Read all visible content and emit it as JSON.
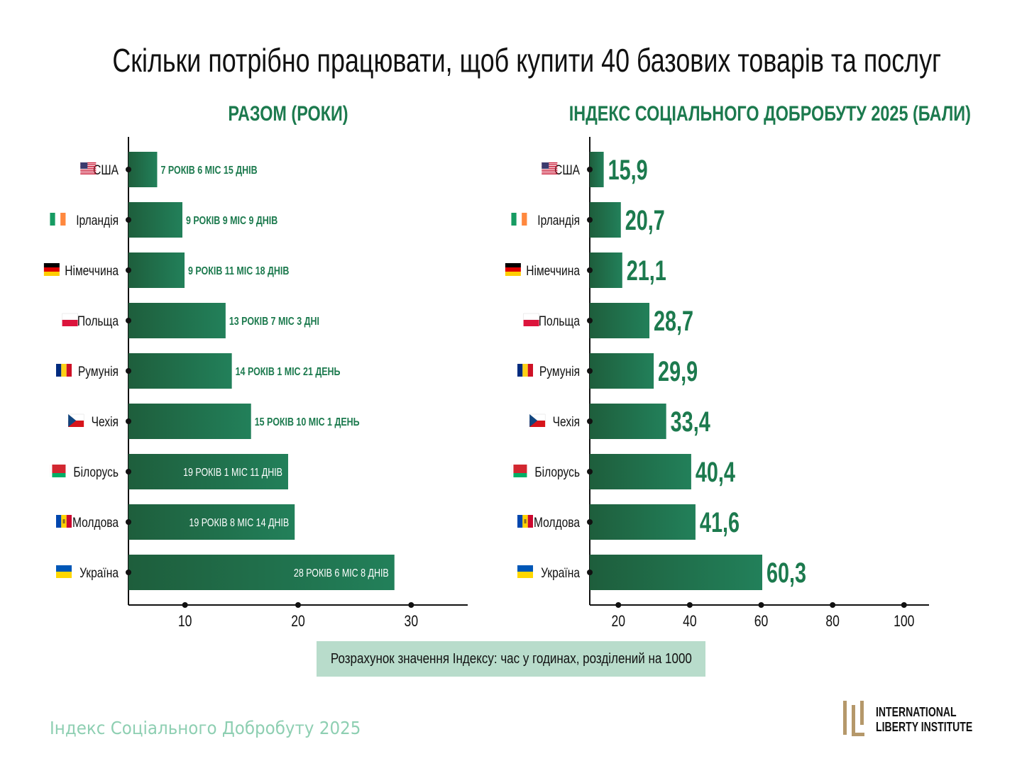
{
  "title": "Скільки потрібно працювати, щоб купити 40 базових товарів та послуг",
  "colors": {
    "accent": "#1c7a4e",
    "bar_dark": "#1e5e3c",
    "bar_light": "#22805a",
    "footnote_bg": "#b8dccb",
    "logo_gold": "#b5986a",
    "footer": "#8ecfb2"
  },
  "chart_data": [
    {
      "type": "bar",
      "orientation": "horizontal",
      "title": "РАЗОМ (РОКИ)",
      "xlabel": "",
      "ylabel": "",
      "xlim": [
        5,
        35
      ],
      "xticks": [
        10,
        20,
        30
      ],
      "categories": [
        "США",
        "Ірландія",
        "Німеччина",
        "Польща",
        "Румунія",
        "Чехія",
        "Білорусь",
        "Молдова",
        "Україна"
      ],
      "flags": [
        "us-flag-icon",
        "ireland-flag-icon",
        "germany-flag-icon",
        "poland-flag-icon",
        "romania-flag-icon",
        "czechia-flag-icon",
        "belarus-flag-icon",
        "moldova-flag-icon",
        "ukraine-flag-icon"
      ],
      "values": [
        7.54,
        9.77,
        9.96,
        13.59,
        14.14,
        15.84,
        19.12,
        19.7,
        28.52
      ],
      "labels": [
        "7 РОКІВ 6 МІС 15 ДНІВ",
        "9 РОКІВ 9 МІС 9 ДНІВ",
        "9 РОКІВ 11 МІС 18 ДНІВ",
        "13 РОКІВ 7 МІС 3 ДНІ",
        "14 РОКІВ 1 МІС 21 ДЕНЬ",
        "15 РОКІВ 10 МІС 1 ДЕНЬ",
        "19 РОКІВ 1 МІС 11 ДНІВ",
        "19 РОКІВ 8 МІС 14 ДНІВ",
        "28 РОКІВ 6 МІС 8 ДНІВ"
      ]
    },
    {
      "type": "bar",
      "orientation": "horizontal",
      "title": "ІНДЕКС СОЦІАЛЬНОГО ДОБРОБУТУ 2025 (БАЛИ)",
      "xlabel": "",
      "ylabel": "",
      "xlim": [
        12,
        107
      ],
      "xticks": [
        20,
        40,
        60,
        80,
        100
      ],
      "categories": [
        "США",
        "Ірландія",
        "Німеччина",
        "Польща",
        "Румунія",
        "Чехія",
        "Білорусь",
        "Молдова",
        "Україна"
      ],
      "flags": [
        "us-flag-icon",
        "ireland-flag-icon",
        "germany-flag-icon",
        "poland-flag-icon",
        "romania-flag-icon",
        "czechia-flag-icon",
        "belarus-flag-icon",
        "moldova-flag-icon",
        "ukraine-flag-icon"
      ],
      "values": [
        15.9,
        20.7,
        21.1,
        28.7,
        29.9,
        33.4,
        40.4,
        41.6,
        60.3
      ],
      "labels": [
        "15,9",
        "20,7",
        "21,1",
        "28,7",
        "29,9",
        "33,4",
        "40,4",
        "41,6",
        "60,3"
      ]
    }
  ],
  "footnote": "Розрахунок значення Індексу: час у годинах, розділений на 1000",
  "footer": "Індекс Соціального Добробуту 2025",
  "logo": {
    "line1": "INTERNATIONAL",
    "line2": "LIBERTY INSTITUTE"
  }
}
